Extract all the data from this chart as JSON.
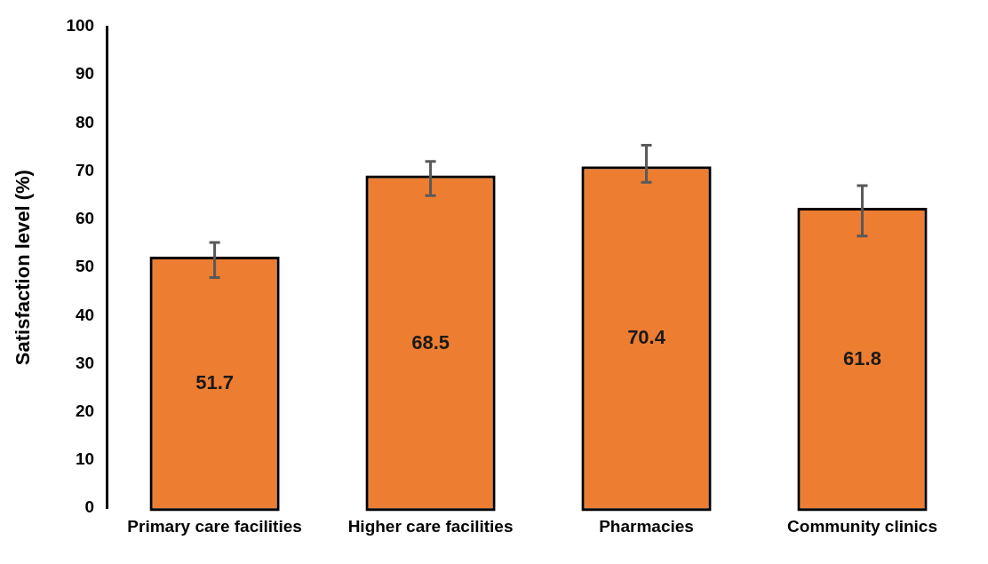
{
  "chart_data": {
    "type": "bar",
    "ylabel": "Satisfaction level (%)",
    "categories": [
      "Primary care facilities",
      "Higher care facilities",
      "Pharmacies",
      "Community clinics"
    ],
    "values": [
      51.7,
      68.5,
      70.4,
      61.8
    ],
    "color": "#ed7d31",
    "errors": [
      [
        47.9,
        55.2
      ],
      [
        64.9,
        72.0
      ],
      [
        67.7,
        75.4
      ],
      [
        56.5,
        67.0
      ]
    ],
    "ylim": [
      0,
      100
    ],
    "yticks": [
      0,
      10,
      20,
      30,
      40,
      50,
      60,
      70,
      80,
      90,
      100
    ],
    "grid": false,
    "legend": false,
    "data_labels": true
  }
}
